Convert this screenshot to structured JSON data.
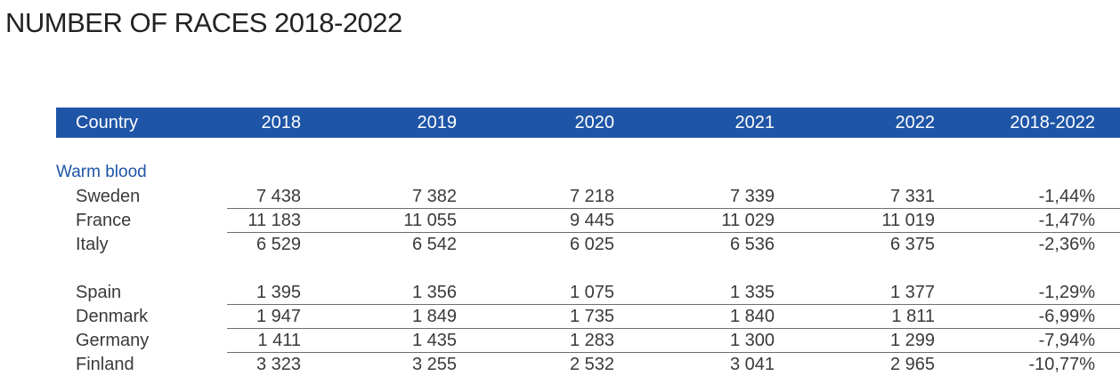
{
  "title": "NUMBER OF RACES 2018-2022",
  "header": {
    "country": "Country",
    "y2018": "2018",
    "y2019": "2019",
    "y2020": "2020",
    "y2021": "2021",
    "y2022": "2022",
    "change": "2018-2022"
  },
  "group": {
    "label": "Warm blood"
  },
  "rows": [
    {
      "country": "Sweden",
      "v2018": "7 438",
      "v2019": "7 382",
      "v2020": "7 218",
      "v2021": "7 339",
      "v2022": "7 331",
      "change": "-1,44%"
    },
    {
      "country": "France",
      "v2018": "11 183",
      "v2019": "11 055",
      "v2020": "9 445",
      "v2021": "11 029",
      "v2022": "11 019",
      "change": "-1,47%"
    },
    {
      "country": "Italy",
      "v2018": "6 529",
      "v2019": "6 542",
      "v2020": "6 025",
      "v2021": "6 536",
      "v2022": "6 375",
      "change": "-2,36%"
    },
    {
      "country": "Spain",
      "v2018": "1 395",
      "v2019": "1 356",
      "v2020": "1 075",
      "v2021": "1 335",
      "v2022": "1 377",
      "change": "-1,29%"
    },
    {
      "country": "Denmark",
      "v2018": "1 947",
      "v2019": "1 849",
      "v2020": "1 735",
      "v2021": "1 840",
      "v2022": "1 811",
      "change": "-6,99%"
    },
    {
      "country": "Germany",
      "v2018": "1 411",
      "v2019": "1 435",
      "v2020": "1 283",
      "v2021": "1 300",
      "v2022": "1 299",
      "change": "-7,94%"
    },
    {
      "country": "Finland",
      "v2018": "3 323",
      "v2019": "3 255",
      "v2020": "2 532",
      "v2021": "3 041",
      "v2022": "2 965",
      "change": "-10,77%"
    }
  ]
}
